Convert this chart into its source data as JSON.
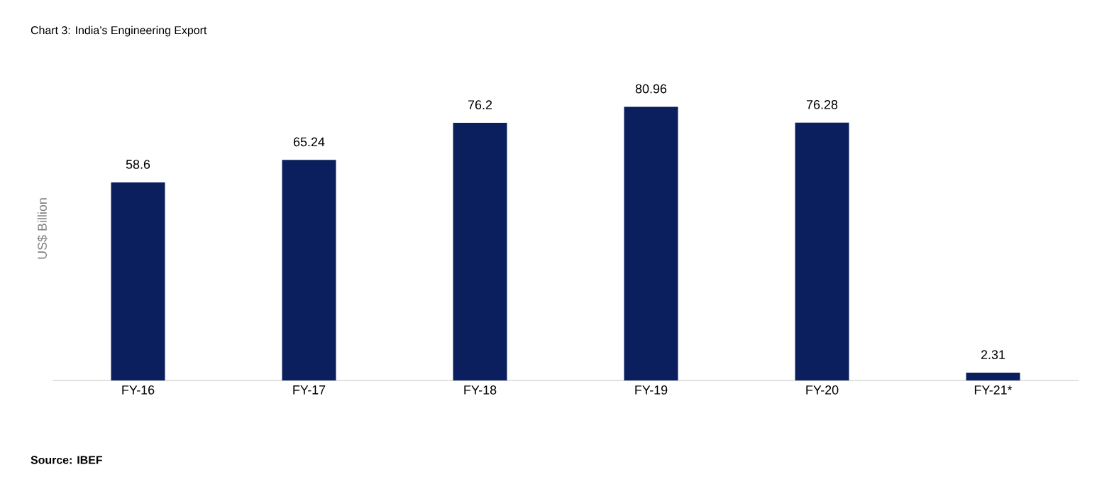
{
  "chart_data": {
    "type": "bar",
    "title": "Chart 3: India’s Engineering Export",
    "ylabel": "US$ Billion",
    "categories": [
      "FY-16",
      "FY-17",
      "FY-18",
      "FY-19",
      "FY-20",
      "FY-21*"
    ],
    "values": [
      58.6,
      65.24,
      76.2,
      80.96,
      76.28,
      2.31
    ],
    "color": "#0b1f5e",
    "data_labels": true,
    "annotations": [
      "Source: IBEF"
    ]
  }
}
